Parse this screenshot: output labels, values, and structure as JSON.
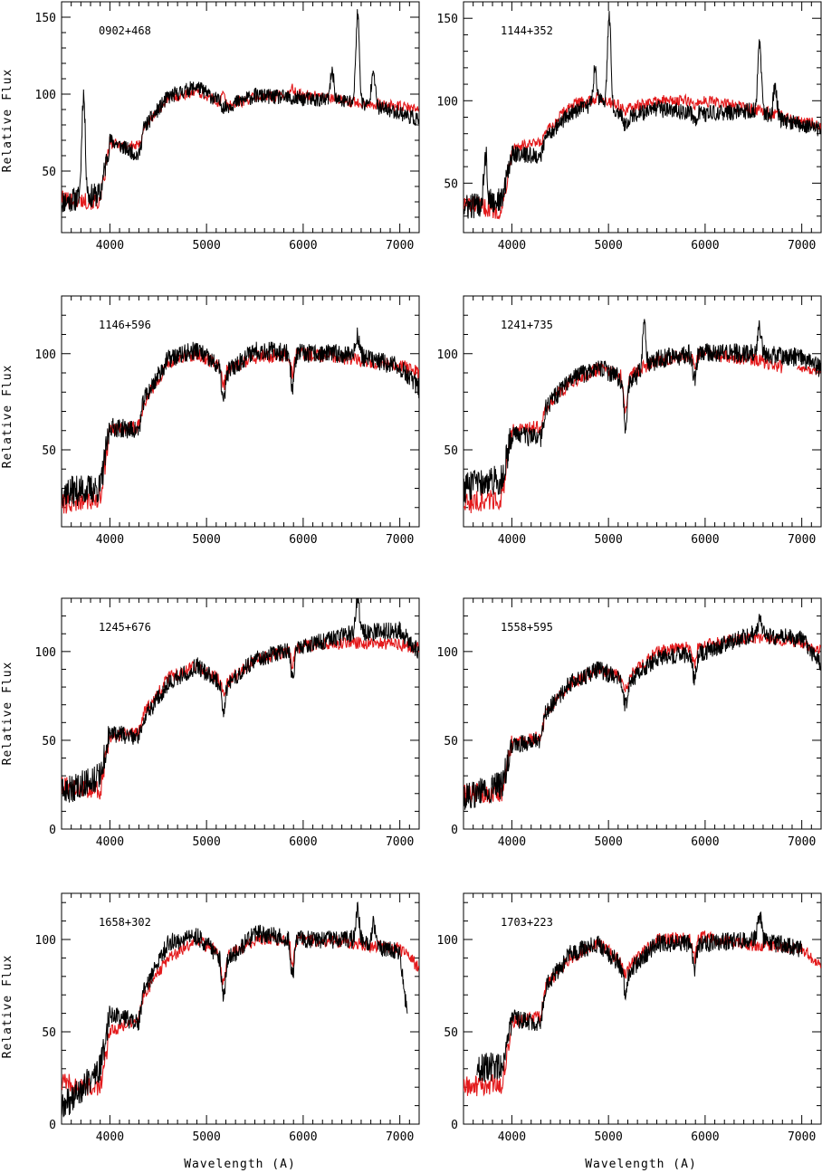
{
  "figure": {
    "ylabel": "Relative Flux",
    "xlabel": "Wavelength (A)",
    "colors": {
      "observed": "#000000",
      "model": "#e31a1c"
    }
  },
  "chart_data": [
    {
      "type": "line",
      "title": "0902+468",
      "xlim": [
        3500,
        7200
      ],
      "ylim": [
        10,
        160
      ],
      "xticks": [
        4000,
        5000,
        6000,
        7000
      ],
      "yticks": [
        50,
        100,
        150
      ],
      "model_x": [
        3500,
        3900,
        4000,
        4300,
        4350,
        4600,
        4900,
        5200,
        5500,
        6000,
        6500,
        7000,
        7200
      ],
      "model_y": [
        32,
        30,
        68,
        66,
        78,
        97,
        102,
        92,
        98,
        100,
        95,
        92,
        90
      ],
      "observed_x": [
        3500,
        3900,
        4000,
        4300,
        4350,
        4600,
        4900,
        5200,
        5500,
        6000,
        6500,
        7000,
        7200
      ],
      "observed_y": [
        30,
        35,
        70,
        60,
        78,
        98,
        105,
        92,
        99,
        97,
        95,
        88,
        83
      ],
      "emission_lines": [
        [
          3727,
          100
        ],
        [
          6300,
          115
        ],
        [
          6563,
          152
        ],
        [
          6725,
          118
        ]
      ],
      "absorption_lines": [
        [
          5175,
          92
        ],
        [
          5890,
          96
        ]
      ]
    },
    {
      "type": "line",
      "title": "1144+352",
      "xlim": [
        3500,
        7200
      ],
      "ylim": [
        20,
        160
      ],
      "xticks": [
        4000,
        5000,
        6000,
        7000
      ],
      "yticks": [
        50,
        100,
        150
      ],
      "model_x": [
        3500,
        3900,
        4000,
        4300,
        4350,
        4600,
        4900,
        5200,
        5500,
        6000,
        6500,
        7000,
        7200
      ],
      "model_y": [
        38,
        33,
        72,
        74,
        80,
        97,
        102,
        95,
        100,
        100,
        95,
        88,
        85
      ],
      "observed_x": [
        3500,
        3900,
        4000,
        4300,
        4350,
        4600,
        4900,
        5200,
        5500,
        6000,
        6500,
        7000,
        7200
      ],
      "observed_y": [
        35,
        40,
        68,
        66,
        78,
        92,
        100,
        90,
        95,
        92,
        94,
        85,
        82
      ],
      "emission_lines": [
        [
          3727,
          68
        ],
        [
          4861,
          120
        ],
        [
          5007,
          152
        ],
        [
          6563,
          134
        ],
        [
          6725,
          110
        ]
      ],
      "absorption_lines": [
        [
          5175,
          85
        ],
        [
          5890,
          88
        ]
      ]
    },
    {
      "type": "line",
      "title": "1146+596",
      "xlim": [
        3500,
        7200
      ],
      "ylim": [
        10,
        130
      ],
      "xticks": [
        4000,
        5000,
        6000,
        7000
      ],
      "yticks": [
        50,
        100
      ],
      "model_x": [
        3500,
        3900,
        4000,
        4300,
        4350,
        4600,
        4900,
        5200,
        5500,
        6000,
        6500,
        7000,
        7200
      ],
      "model_y": [
        22,
        25,
        60,
        62,
        75,
        95,
        100,
        92,
        98,
        100,
        97,
        94,
        90
      ],
      "observed_x": [
        3500,
        3900,
        4000,
        4300,
        4350,
        4600,
        4900,
        5200,
        5500,
        6000,
        6500,
        7000,
        7200
      ],
      "observed_y": [
        28,
        30,
        62,
        60,
        76,
        97,
        102,
        90,
        102,
        100,
        100,
        93,
        82
      ],
      "emission_lines": [
        [
          6563,
          110
        ]
      ],
      "absorption_lines": [
        [
          5175,
          75
        ],
        [
          5890,
          82
        ]
      ]
    },
    {
      "type": "line",
      "title": "1241+735",
      "xlim": [
        3500,
        7200
      ],
      "ylim": [
        10,
        130
      ],
      "xticks": [
        4000,
        5000,
        6000,
        7000
      ],
      "yticks": [
        50,
        100
      ],
      "model_x": [
        3500,
        3900,
        4000,
        4300,
        4350,
        4600,
        4900,
        5200,
        5500,
        6000,
        6500,
        6800
      ],
      "model_y": [
        22,
        25,
        60,
        62,
        72,
        85,
        92,
        88,
        97,
        100,
        97,
        93
      ],
      "observed_x": [
        3500,
        3900,
        4000,
        4300,
        4350,
        4600,
        4900,
        5200,
        5500,
        6000,
        6500,
        7000,
        7200
      ],
      "observed_y": [
        30,
        35,
        58,
        56,
        72,
        86,
        93,
        85,
        97,
        101,
        100,
        98,
        92
      ],
      "model_tail_x": [
        6950,
        7200
      ],
      "model_tail_y": [
        93,
        90
      ],
      "emission_lines": [
        [
          5370,
          115
        ],
        [
          6563,
          114
        ]
      ],
      "absorption_lines": [
        [
          5175,
          63
        ],
        [
          5890,
          86
        ]
      ]
    },
    {
      "type": "line",
      "title": "1245+676",
      "xlim": [
        3500,
        7200
      ],
      "ylim": [
        0,
        130
      ],
      "xticks": [
        4000,
        5000,
        6000,
        7000
      ],
      "yticks": [
        0,
        50,
        100
      ],
      "model_x": [
        3500,
        3900,
        4000,
        4300,
        4350,
        4600,
        4900,
        5200,
        5500,
        6000,
        6500,
        7000,
        7200
      ],
      "model_y": [
        24,
        22,
        52,
        55,
        65,
        85,
        92,
        82,
        95,
        103,
        105,
        104,
        102
      ],
      "observed_x": [
        3500,
        3900,
        4000,
        4300,
        4350,
        4600,
        4900,
        5200,
        5500,
        6000,
        6500,
        7000,
        7200
      ],
      "observed_y": [
        20,
        30,
        54,
        52,
        62,
        82,
        92,
        80,
        96,
        103,
        110,
        112,
        100
      ],
      "emission_lines": [
        [
          6563,
          130
        ]
      ],
      "absorption_lines": [
        [
          5175,
          68
        ],
        [
          5890,
          85
        ]
      ]
    },
    {
      "type": "line",
      "title": "1558+595",
      "xlim": [
        3500,
        7200
      ],
      "ylim": [
        0,
        130
      ],
      "xticks": [
        4000,
        5000,
        6000,
        7000
      ],
      "yticks": [
        0,
        50,
        100
      ],
      "model_x": [
        3500,
        3900,
        4000,
        4300,
        4350,
        4600,
        4900,
        5200,
        5500,
        6000,
        6500,
        7000,
        7200
      ],
      "model_y": [
        20,
        20,
        48,
        52,
        65,
        82,
        90,
        85,
        100,
        104,
        108,
        105,
        100
      ],
      "observed_x": [
        3500,
        3900,
        4000,
        4300,
        4350,
        4600,
        4900,
        5200,
        5500,
        6000,
        6500,
        7000,
        7200
      ],
      "observed_y": [
        18,
        25,
        47,
        50,
        66,
        82,
        90,
        83,
        96,
        100,
        110,
        107,
        93
      ],
      "emission_lines": [
        [
          6563,
          118
        ]
      ],
      "absorption_lines": [
        [
          5175,
          70
        ],
        [
          5890,
          85
        ]
      ]
    },
    {
      "type": "line",
      "title": "1658+302",
      "xlim": [
        3500,
        7200
      ],
      "ylim": [
        0,
        125
      ],
      "xticks": [
        4000,
        5000,
        6000,
        7000
      ],
      "yticks": [
        0,
        50,
        100
      ],
      "model_x": [
        3500,
        3900,
        4000,
        4300,
        4350,
        4600,
        4900,
        5200,
        5500,
        6000,
        6500,
        7000,
        7200
      ],
      "model_y": [
        22,
        20,
        50,
        58,
        70,
        90,
        100,
        90,
        100,
        100,
        98,
        95,
        85
      ],
      "observed_x": [
        3500,
        3900,
        4000,
        4300,
        4350,
        4600,
        4900,
        5200,
        5500,
        6000,
        6500,
        7000,
        7080
      ],
      "observed_y": [
        8,
        30,
        60,
        55,
        72,
        98,
        102,
        88,
        103,
        100,
        100,
        93,
        58
      ],
      "emission_lines": [
        [
          6563,
          117
        ],
        [
          6725,
          108
        ]
      ],
      "absorption_lines": [
        [
          5175,
          68
        ],
        [
          5890,
          80
        ]
      ]
    },
    {
      "type": "line",
      "title": "1703+223",
      "xlim": [
        3500,
        7200
      ],
      "ylim": [
        0,
        125
      ],
      "xticks": [
        4000,
        5000,
        6000,
        7000
      ],
      "yticks": [
        0,
        50,
        100
      ],
      "model_x": [
        3500,
        3900,
        4000,
        4300,
        4350,
        4600,
        4900,
        5200,
        5500,
        6000,
        6500,
        7000,
        7200
      ],
      "model_y": [
        20,
        22,
        55,
        58,
        75,
        90,
        98,
        85,
        100,
        101,
        97,
        95,
        86
      ],
      "observed_x": [
        3640,
        3900,
        4000,
        4300,
        4350,
        4600,
        4900,
        5200,
        5500,
        6000,
        6500,
        7000
      ],
      "observed_y": [
        30,
        32,
        57,
        55,
        75,
        92,
        98,
        82,
        98,
        98,
        100,
        95
      ],
      "emission_lines": [
        [
          6563,
          114
        ]
      ],
      "absorption_lines": [
        [
          5175,
          72
        ],
        [
          5890,
          82
        ]
      ]
    }
  ]
}
